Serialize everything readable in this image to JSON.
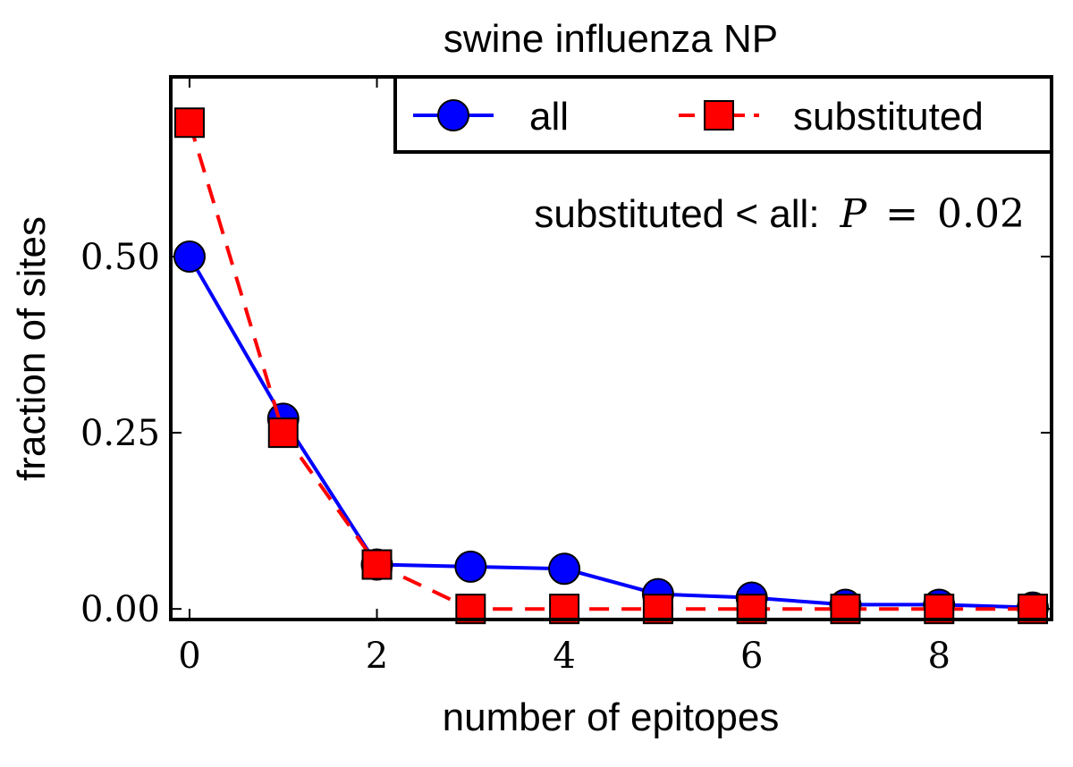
{
  "chart_data": {
    "type": "line",
    "title": "swine influenza NP",
    "xlabel": "number of epitopes",
    "ylabel": "fraction of sites",
    "xlim": [
      -0.2,
      9.2
    ],
    "ylim": [
      -0.015,
      0.755
    ],
    "xticks": [
      0,
      2,
      4,
      6,
      8
    ],
    "xtick_labels": [
      "0",
      "2",
      "4",
      "6",
      "8"
    ],
    "yticks": [
      0.0,
      0.25,
      0.5
    ],
    "ytick_labels": [
      "0.00",
      "0.25",
      "0.50"
    ],
    "x": [
      0,
      1,
      2,
      3,
      4,
      5,
      6,
      7,
      8,
      9
    ],
    "series": [
      {
        "name": "all",
        "values": [
          0.5,
          0.27,
          0.063,
          0.06,
          0.057,
          0.021,
          0.016,
          0.006,
          0.006,
          0.002
        ],
        "color": "#0000ff",
        "marker": "circle",
        "linestyle": "solid"
      },
      {
        "name": "substituted",
        "values": [
          0.69,
          0.25,
          0.063,
          0.0,
          0.0,
          0.0,
          0.0,
          0.0,
          0.0,
          0.0
        ],
        "color": "#ff0000",
        "marker": "square",
        "linestyle": "dashed"
      }
    ],
    "annotation": {
      "text": "substituted < all:",
      "stat_symbol": "P",
      "stat_equals": "=",
      "stat_value": "0.02"
    },
    "legend": {
      "position": "top-right",
      "columns": 2
    },
    "grid": false
  }
}
